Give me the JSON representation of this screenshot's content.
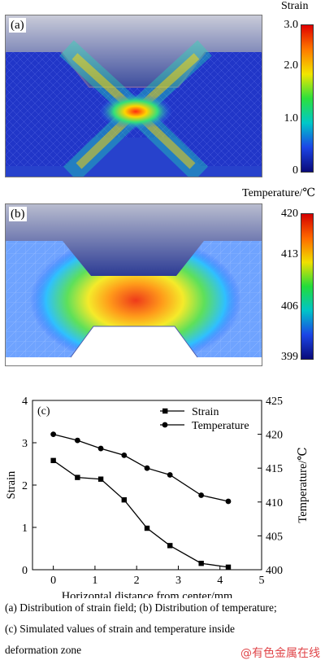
{
  "panel_a": {
    "label": "(a)",
    "colorbar_title": "Strain",
    "colorbar_ticks": [
      "3.0",
      "2.0",
      "1.0",
      "0"
    ]
  },
  "panel_b": {
    "label": "(b)",
    "colorbar_title": "Temperature/℃",
    "colorbar_ticks": [
      "420",
      "413",
      "406",
      "399"
    ]
  },
  "chart_data": {
    "type": "line",
    "panel_label": "(c)",
    "xlabel": "Horizontal distance from center/mm",
    "ylabel": "Strain",
    "y2label": "Temperature/℃",
    "xlim": [
      -0.5,
      5
    ],
    "ylim": [
      0,
      4
    ],
    "y2lim": [
      400,
      425
    ],
    "xticks": [
      "0",
      "1",
      "2",
      "3",
      "4",
      "5"
    ],
    "yticks": [
      "0",
      "1",
      "2",
      "3",
      "4"
    ],
    "y2ticks": [
      "400",
      "405",
      "410",
      "415",
      "420",
      "425"
    ],
    "legend_position": "top-right",
    "series": [
      {
        "name": "Strain",
        "axis": "left",
        "marker": "square",
        "x": [
          0,
          0.58,
          1.14,
          1.7,
          2.25,
          2.8,
          3.55,
          4.2
        ],
        "y": [
          2.58,
          2.18,
          2.14,
          1.65,
          0.98,
          0.57,
          0.15,
          0.06
        ]
      },
      {
        "name": "Temperature",
        "axis": "right",
        "marker": "circle",
        "x": [
          0,
          0.58,
          1.14,
          1.7,
          2.25,
          2.8,
          3.55,
          4.2
        ],
        "y": [
          420,
          419.1,
          417.9,
          416.9,
          415.0,
          414.0,
          411.0,
          410.1
        ]
      }
    ]
  },
  "caption": {
    "line1": "(a) Distribution of strain field; (b) Distribution of temperature;",
    "line2": "(c)  Simulated  values  of  strain  and  temperature  inside",
    "line3": "deformation zone"
  },
  "watermark": "@有色金属在线"
}
